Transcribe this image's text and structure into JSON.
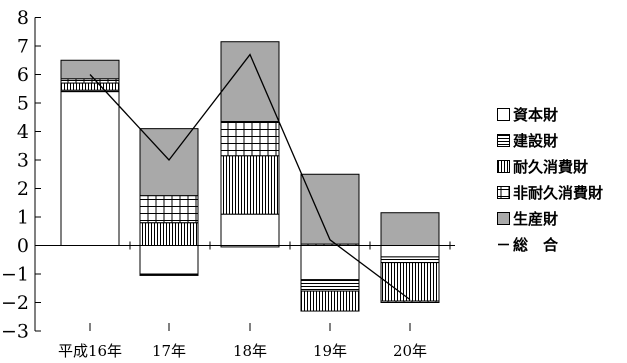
{
  "chart_data": {
    "type": "bar",
    "categories": [
      "平成16年",
      "17年",
      "18年",
      "19年",
      "20年"
    ],
    "ylim": [
      -3,
      8
    ],
    "yticks": [
      8,
      7,
      6,
      5,
      4,
      3,
      2,
      1,
      0,
      -1,
      -2,
      -3
    ],
    "ytick_labels": [
      "8",
      "7",
      "6",
      "5",
      "4",
      "3",
      "2",
      "1",
      "0",
      "−1",
      "−2",
      "−3"
    ],
    "series": [
      {
        "name": "資本財",
        "values": [
          5.4,
          -1.0,
          1.1,
          -1.2,
          -0.4
        ],
        "pattern": "blank"
      },
      {
        "name": "建設財",
        "values": [
          0.05,
          -0.05,
          -0.05,
          -0.4,
          -0.2
        ],
        "pattern": "hlines"
      },
      {
        "name": "耐久消費財",
        "values": [
          0.25,
          0.8,
          2.05,
          -0.7,
          -1.35
        ],
        "pattern": "vlines"
      },
      {
        "name": "非耐久消費財",
        "values": [
          0.15,
          0.95,
          1.2,
          0.05,
          -0.05
        ],
        "pattern": "grid"
      },
      {
        "name": "生産財",
        "values": [
          0.65,
          2.35,
          2.8,
          2.45,
          1.15
        ],
        "pattern": "gray"
      }
    ],
    "line": {
      "name": "総　合",
      "values": [
        6.0,
        3.0,
        6.7,
        0.2,
        -1.9
      ]
    },
    "legend_marks": [
      "□",
      "▤",
      "▥",
      "⊞",
      "■",
      "−"
    ],
    "legend_position": "right",
    "grid": false
  }
}
